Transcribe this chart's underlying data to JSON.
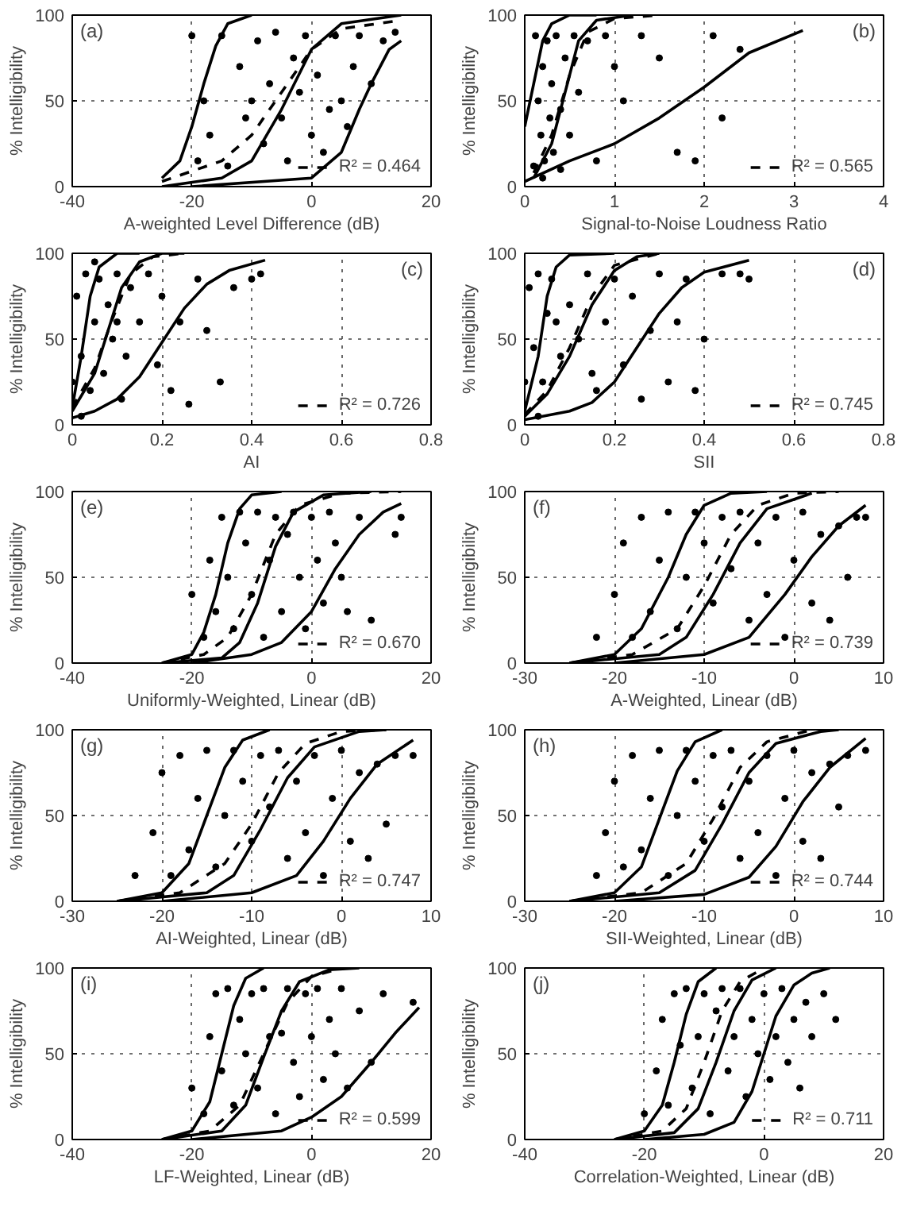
{
  "chart_data": [
    {
      "type": "scatter",
      "xlabel": "A-weighted Level Difference (dB)",
      "ylabel": "% Intelligibility",
      "xlim": [
        -40,
        20
      ],
      "xticks": [
        -40,
        -20,
        0,
        20
      ],
      "ylim": [
        0,
        100
      ],
      "yticks": [
        0,
        50,
        100
      ],
      "grid": true,
      "legend": "bottom right",
      "annotations": [
        "(a)"
      ],
      "series": [
        {
          "type": "scatter",
          "marker": "circle",
          "color": "#000000",
          "x": [
            -20,
            -19,
            -17,
            -15,
            -14,
            -12,
            -10,
            -9,
            -8,
            -7,
            -6,
            -5,
            -4,
            -3,
            -2,
            -1,
            0,
            1,
            2,
            3,
            4,
            5,
            6,
            7,
            8,
            10,
            12,
            14,
            -18,
            -11
          ],
          "values": [
            88,
            15,
            30,
            88,
            12,
            70,
            50,
            85,
            25,
            60,
            90,
            40,
            15,
            75,
            55,
            88,
            30,
            65,
            20,
            45,
            88,
            50,
            35,
            70,
            88,
            60,
            85,
            90,
            50,
            40
          ]
        },
        {
          "type": "line",
          "line_style": "solid",
          "color": "#000000",
          "x": [
            -25,
            -22,
            -20,
            -18,
            -16,
            -14,
            -10
          ],
          "values": [
            5,
            15,
            35,
            60,
            82,
            95,
            100
          ]
        },
        {
          "type": "line",
          "line_style": "solid",
          "color": "#000000",
          "x": [
            -25,
            -15,
            -10,
            -5,
            0,
            5,
            15
          ],
          "values": [
            0,
            5,
            15,
            45,
            80,
            95,
            100
          ]
        },
        {
          "type": "line",
          "line_style": "solid",
          "color": "#000000",
          "x": [
            -20,
            0,
            5,
            8,
            10,
            13,
            15
          ],
          "values": [
            0,
            5,
            20,
            45,
            60,
            80,
            85
          ]
        },
        {
          "type": "line",
          "line_style": "dashed",
          "name": "R² = 0.464",
          "color": "#000000",
          "x": [
            -25,
            -15,
            -10,
            -5,
            0,
            5,
            15
          ],
          "values": [
            3,
            15,
            30,
            55,
            80,
            92,
            97
          ]
        }
      ]
    },
    {
      "type": "scatter",
      "xlabel": "Signal-to-Noise Loudness Ratio",
      "ylabel": "% Intelligibility",
      "xlim": [
        0,
        4
      ],
      "xticks": [
        0,
        1,
        2,
        3,
        4
      ],
      "ylim": [
        0,
        100
      ],
      "yticks": [
        0,
        50,
        100
      ],
      "grid": true,
      "legend": "bottom right",
      "annotations": [
        "(b)"
      ],
      "series": [
        {
          "type": "scatter",
          "marker": "circle",
          "color": "#000000",
          "x": [
            0.1,
            0.12,
            0.15,
            0.18,
            0.2,
            0.22,
            0.25,
            0.28,
            0.3,
            0.32,
            0.35,
            0.4,
            0.45,
            0.5,
            0.55,
            0.6,
            0.7,
            0.8,
            0.9,
            1.0,
            1.1,
            1.3,
            1.5,
            1.7,
            1.9,
            2.1,
            2.2,
            2.4,
            0.2,
            0.4
          ],
          "values": [
            12,
            88,
            50,
            30,
            70,
            15,
            85,
            40,
            60,
            20,
            88,
            45,
            75,
            30,
            88,
            55,
            85,
            15,
            88,
            70,
            50,
            88,
            75,
            20,
            15,
            88,
            40,
            80,
            5,
            10
          ]
        },
        {
          "type": "line",
          "line_style": "solid",
          "color": "#000000",
          "x": [
            0,
            0.1,
            0.2,
            0.3,
            0.5,
            0.8
          ],
          "values": [
            35,
            60,
            85,
            95,
            100,
            100
          ]
        },
        {
          "type": "line",
          "line_style": "solid",
          "color": "#000000",
          "x": [
            0.1,
            0.3,
            0.45,
            0.6,
            0.8,
            1.2
          ],
          "values": [
            5,
            25,
            55,
            85,
            97,
            100
          ]
        },
        {
          "type": "line",
          "line_style": "solid",
          "color": "#000000",
          "x": [
            0,
            0.5,
            1,
            1.5,
            2,
            2.5,
            3.1
          ],
          "values": [
            3,
            15,
            25,
            40,
            58,
            78,
            91
          ]
        },
        {
          "type": "line",
          "line_style": "dashed",
          "name": "R² = 0.565",
          "color": "#000000",
          "x": [
            0.1,
            0.3,
            0.5,
            0.7,
            1.0,
            1.5
          ],
          "values": [
            8,
            30,
            65,
            90,
            98,
            100
          ]
        }
      ]
    },
    {
      "type": "scatter",
      "xlabel": "AI",
      "ylabel": "% Intelligibility",
      "xlim": [
        0,
        0.8
      ],
      "xticks": [
        0,
        0.2,
        0.4,
        0.6,
        0.8
      ],
      "ylim": [
        0,
        100
      ],
      "yticks": [
        0,
        50,
        100
      ],
      "grid": true,
      "legend": "bottom right",
      "annotations": [
        "(c)"
      ],
      "series": [
        {
          "type": "scatter",
          "marker": "circle",
          "color": "#000000",
          "x": [
            0,
            0.01,
            0.02,
            0.03,
            0.04,
            0.05,
            0.06,
            0.07,
            0.08,
            0.09,
            0.1,
            0.11,
            0.12,
            0.13,
            0.15,
            0.17,
            0.19,
            0.2,
            0.22,
            0.24,
            0.26,
            0.28,
            0.3,
            0.33,
            0.36,
            0.4,
            0.42,
            0.02,
            0.05,
            0.1
          ],
          "values": [
            25,
            75,
            40,
            88,
            20,
            60,
            85,
            30,
            70,
            50,
            88,
            15,
            40,
            80,
            60,
            88,
            35,
            75,
            20,
            60,
            12,
            85,
            55,
            25,
            80,
            85,
            88,
            5,
            95,
            60
          ]
        },
        {
          "type": "line",
          "line_style": "solid",
          "color": "#000000",
          "x": [
            0,
            0.02,
            0.04,
            0.06,
            0.1,
            0.15
          ],
          "values": [
            10,
            40,
            75,
            92,
            100,
            100
          ]
        },
        {
          "type": "line",
          "line_style": "solid",
          "color": "#000000",
          "x": [
            0,
            0.05,
            0.08,
            0.11,
            0.15,
            0.2,
            0.25
          ],
          "values": [
            8,
            30,
            55,
            80,
            95,
            100,
            100
          ]
        },
        {
          "type": "line",
          "line_style": "solid",
          "color": "#000000",
          "x": [
            0,
            0.05,
            0.1,
            0.15,
            0.2,
            0.25,
            0.3,
            0.35,
            0.43
          ],
          "values": [
            4,
            8,
            15,
            28,
            48,
            68,
            82,
            90,
            96
          ]
        },
        {
          "type": "line",
          "line_style": "dashed",
          "name": "R² = 0.726",
          "color": "#000000",
          "x": [
            0,
            0.05,
            0.09,
            0.13,
            0.18,
            0.25
          ],
          "values": [
            10,
            33,
            62,
            88,
            98,
            100
          ]
        }
      ]
    },
    {
      "type": "scatter",
      "xlabel": "SII",
      "ylabel": "% Intelligibility",
      "xlim": [
        0,
        0.8
      ],
      "xticks": [
        0,
        0.2,
        0.4,
        0.6,
        0.8
      ],
      "ylim": [
        0,
        100
      ],
      "yticks": [
        0,
        50,
        100
      ],
      "grid": true,
      "legend": "bottom right",
      "annotations": [
        "(d)"
      ],
      "series": [
        {
          "type": "scatter",
          "marker": "circle",
          "color": "#000000",
          "x": [
            0,
            0.01,
            0.02,
            0.03,
            0.04,
            0.05,
            0.06,
            0.08,
            0.1,
            0.12,
            0.14,
            0.16,
            0.18,
            0.2,
            0.22,
            0.24,
            0.26,
            0.28,
            0.3,
            0.32,
            0.34,
            0.36,
            0.38,
            0.4,
            0.44,
            0.48,
            0.5,
            0.03,
            0.07,
            0.15
          ],
          "values": [
            25,
            80,
            45,
            88,
            25,
            65,
            85,
            40,
            70,
            50,
            88,
            20,
            60,
            85,
            35,
            75,
            15,
            55,
            88,
            25,
            60,
            85,
            20,
            50,
            88,
            88,
            85,
            5,
            60,
            30
          ]
        },
        {
          "type": "line",
          "line_style": "solid",
          "color": "#000000",
          "x": [
            0,
            0.03,
            0.05,
            0.07,
            0.1,
            0.2
          ],
          "values": [
            8,
            40,
            75,
            92,
            99,
            100
          ]
        },
        {
          "type": "line",
          "line_style": "solid",
          "color": "#000000",
          "x": [
            0,
            0.05,
            0.1,
            0.15,
            0.2,
            0.25,
            0.3
          ],
          "values": [
            5,
            18,
            40,
            70,
            90,
            98,
            100
          ]
        },
        {
          "type": "line",
          "line_style": "solid",
          "color": "#000000",
          "x": [
            0,
            0.1,
            0.15,
            0.2,
            0.25,
            0.3,
            0.35,
            0.4,
            0.5
          ],
          "values": [
            3,
            8,
            13,
            25,
            45,
            65,
            80,
            89,
            96
          ]
        },
        {
          "type": "line",
          "line_style": "dashed",
          "name": "R² = 0.745",
          "color": "#000000",
          "x": [
            0,
            0.05,
            0.1,
            0.15,
            0.2,
            0.3
          ],
          "values": [
            6,
            20,
            45,
            75,
            93,
            100
          ]
        }
      ]
    },
    {
      "type": "scatter",
      "xlabel": "Uniformly-Weighted, Linear (dB)",
      "ylabel": "% Intelligibility",
      "xlim": [
        -40,
        20
      ],
      "xticks": [
        -40,
        -20,
        0,
        20
      ],
      "ylim": [
        0,
        100
      ],
      "yticks": [
        0,
        50,
        100
      ],
      "grid": true,
      "legend": "bottom right",
      "annotations": [
        "(e)"
      ],
      "series": [
        {
          "type": "scatter",
          "marker": "circle",
          "color": "#000000",
          "x": [
            -20,
            -18,
            -17,
            -16,
            -15,
            -14,
            -13,
            -12,
            -11,
            -10,
            -9,
            -8,
            -7,
            -6,
            -5,
            -4,
            -3,
            -2,
            -1,
            0,
            1,
            2,
            3,
            4,
            5,
            6,
            8,
            10,
            14,
            15
          ],
          "values": [
            40,
            15,
            60,
            30,
            85,
            50,
            20,
            88,
            70,
            40,
            88,
            15,
            60,
            85,
            30,
            75,
            88,
            50,
            20,
            85,
            60,
            35,
            88,
            70,
            50,
            30,
            85,
            25,
            75,
            85
          ]
        },
        {
          "type": "line",
          "line_style": "solid",
          "color": "#000000",
          "x": [
            -25,
            -20,
            -18,
            -16,
            -14,
            -12,
            -10,
            -5
          ],
          "values": [
            0,
            5,
            18,
            40,
            70,
            90,
            98,
            100
          ]
        },
        {
          "type": "line",
          "line_style": "solid",
          "color": "#000000",
          "x": [
            -25,
            -15,
            -12,
            -9,
            -6,
            -3,
            2,
            10
          ],
          "values": [
            0,
            3,
            12,
            35,
            68,
            88,
            98,
            100
          ]
        },
        {
          "type": "line",
          "line_style": "solid",
          "color": "#000000",
          "x": [
            -20,
            -10,
            -5,
            0,
            4,
            8,
            12,
            15
          ],
          "values": [
            0,
            5,
            12,
            30,
            55,
            75,
            88,
            93
          ]
        },
        {
          "type": "line",
          "line_style": "dashed",
          "name": "R² = 0.670",
          "color": "#000000",
          "x": [
            -25,
            -18,
            -14,
            -10,
            -6,
            -2,
            5,
            15
          ],
          "values": [
            0,
            5,
            15,
            40,
            75,
            92,
            99,
            100
          ]
        }
      ]
    },
    {
      "type": "scatter",
      "xlabel": "A-Weighted, Linear (dB)",
      "ylabel": "% Intelligibility",
      "xlim": [
        -30,
        10
      ],
      "xticks": [
        -30,
        -20,
        -10,
        0,
        10
      ],
      "ylim": [
        0,
        100
      ],
      "yticks": [
        0,
        50,
        100
      ],
      "grid": true,
      "legend": "bottom right",
      "annotations": [
        "(f)"
      ],
      "series": [
        {
          "type": "scatter",
          "marker": "circle",
          "color": "#000000",
          "x": [
            -22,
            -20,
            -19,
            -18,
            -17,
            -16,
            -15,
            -14,
            -13,
            -12,
            -11,
            -10,
            -9,
            -8,
            -7,
            -6,
            -5,
            -4,
            -3,
            -2,
            -1,
            0,
            1,
            2,
            3,
            4,
            5,
            6,
            7,
            8
          ],
          "values": [
            15,
            40,
            70,
            15,
            85,
            30,
            60,
            88,
            20,
            50,
            88,
            70,
            35,
            85,
            55,
            88,
            25,
            70,
            40,
            85,
            15,
            60,
            88,
            35,
            75,
            25,
            80,
            50,
            85,
            85
          ]
        },
        {
          "type": "line",
          "line_style": "solid",
          "color": "#000000",
          "x": [
            -25,
            -20,
            -17,
            -14,
            -12,
            -10,
            -7,
            -3
          ],
          "values": [
            0,
            5,
            20,
            50,
            75,
            92,
            99,
            100
          ]
        },
        {
          "type": "line",
          "line_style": "solid",
          "color": "#000000",
          "x": [
            -25,
            -15,
            -12,
            -9,
            -6,
            -3,
            2
          ],
          "values": [
            0,
            5,
            15,
            40,
            70,
            90,
            99
          ]
        },
        {
          "type": "line",
          "line_style": "solid",
          "color": "#000000",
          "x": [
            -20,
            -10,
            -5,
            -1,
            2,
            5,
            8
          ],
          "values": [
            0,
            5,
            15,
            40,
            62,
            80,
            92
          ]
        },
        {
          "type": "line",
          "line_style": "dashed",
          "name": "R² = 0.739",
          "color": "#000000",
          "x": [
            -25,
            -18,
            -13,
            -10,
            -7,
            -4,
            0,
            5
          ],
          "values": [
            0,
            5,
            20,
            45,
            75,
            92,
            99,
            100
          ]
        }
      ]
    },
    {
      "type": "scatter",
      "xlabel": "AI-Weighted, Linear (dB)",
      "ylabel": "% Intelligibility",
      "xlim": [
        -30,
        10
      ],
      "xticks": [
        -30,
        -20,
        -10,
        0,
        10
      ],
      "ylim": [
        0,
        100
      ],
      "yticks": [
        0,
        50,
        100
      ],
      "grid": true,
      "legend": "bottom right",
      "annotations": [
        "(g)"
      ],
      "series": [
        {
          "type": "scatter",
          "marker": "circle",
          "color": "#000000",
          "x": [
            -23,
            -21,
            -20,
            -19,
            -18,
            -17,
            -16,
            -15,
            -14,
            -13,
            -12,
            -11,
            -10,
            -9,
            -8,
            -7,
            -6,
            -5,
            -4,
            -3,
            -2,
            -1,
            0,
            1,
            2,
            3,
            4,
            5,
            6,
            8
          ],
          "values": [
            15,
            40,
            75,
            15,
            85,
            30,
            60,
            88,
            20,
            50,
            88,
            70,
            35,
            85,
            55,
            88,
            25,
            70,
            40,
            85,
            15,
            60,
            88,
            35,
            75,
            25,
            80,
            45,
            85,
            85
          ]
        },
        {
          "type": "line",
          "line_style": "solid",
          "color": "#000000",
          "x": [
            -25,
            -20,
            -17,
            -15,
            -13,
            -11,
            -8
          ],
          "values": [
            0,
            5,
            22,
            50,
            78,
            94,
            100
          ]
        },
        {
          "type": "line",
          "line_style": "solid",
          "color": "#000000",
          "x": [
            -25,
            -15,
            -12,
            -9,
            -6,
            -3,
            2,
            5
          ],
          "values": [
            0,
            5,
            15,
            42,
            72,
            90,
            99,
            100
          ]
        },
        {
          "type": "line",
          "line_style": "solid",
          "color": "#000000",
          "x": [
            -20,
            -10,
            -5,
            -2,
            1,
            4,
            8
          ],
          "values": [
            0,
            5,
            15,
            35,
            60,
            80,
            94
          ]
        },
        {
          "type": "line",
          "line_style": "dashed",
          "name": "R² = 0.747",
          "color": "#000000",
          "x": [
            -25,
            -18,
            -13,
            -10,
            -7,
            -4,
            0,
            5
          ],
          "values": [
            0,
            5,
            22,
            45,
            75,
            92,
            99,
            100
          ]
        }
      ]
    },
    {
      "type": "scatter",
      "xlabel": "SII-Weighted, Linear (dB)",
      "ylabel": "% Intelligibility",
      "xlim": [
        -30,
        10
      ],
      "xticks": [
        -30,
        -20,
        -10,
        0,
        10
      ],
      "ylim": [
        0,
        100
      ],
      "yticks": [
        0,
        50,
        100
      ],
      "grid": true,
      "legend": "bottom right",
      "annotations": [
        "(h)"
      ],
      "series": [
        {
          "type": "scatter",
          "marker": "circle",
          "color": "#000000",
          "x": [
            -22,
            -21,
            -20,
            -19,
            -18,
            -17,
            -16,
            -15,
            -14,
            -13,
            -12,
            -11,
            -10,
            -9,
            -8,
            -7,
            -6,
            -5,
            -4,
            -3,
            -2,
            -1,
            0,
            1,
            2,
            3,
            4,
            5,
            6,
            8
          ],
          "values": [
            15,
            40,
            70,
            20,
            85,
            30,
            60,
            88,
            15,
            50,
            88,
            70,
            35,
            85,
            55,
            88,
            25,
            70,
            40,
            85,
            15,
            60,
            88,
            35,
            75,
            25,
            80,
            55,
            85,
            88
          ]
        },
        {
          "type": "line",
          "line_style": "solid",
          "color": "#000000",
          "x": [
            -25,
            -20,
            -17,
            -15,
            -13,
            -11,
            -8
          ],
          "values": [
            0,
            5,
            20,
            48,
            76,
            93,
            100
          ]
        },
        {
          "type": "line",
          "line_style": "solid",
          "color": "#000000",
          "x": [
            -25,
            -15,
            -11,
            -8,
            -5,
            -2,
            3,
            5
          ],
          "values": [
            0,
            5,
            18,
            45,
            75,
            92,
            99,
            100
          ]
        },
        {
          "type": "line",
          "line_style": "solid",
          "color": "#000000",
          "x": [
            -20,
            -10,
            -5,
            -2,
            1,
            4,
            8
          ],
          "values": [
            0,
            4,
            14,
            32,
            58,
            78,
            95
          ]
        },
        {
          "type": "line",
          "line_style": "dashed",
          "name": "R² = 0.744",
          "color": "#000000",
          "x": [
            -25,
            -17,
            -12,
            -9,
            -6,
            -3,
            2
          ],
          "values": [
            0,
            5,
            22,
            48,
            78,
            93,
            100
          ]
        }
      ]
    },
    {
      "type": "scatter",
      "xlabel": "LF-Weighted, Linear (dB)",
      "ylabel": "% Intelligibility",
      "xlim": [
        -40,
        20
      ],
      "xticks": [
        -40,
        -20,
        0,
        20
      ],
      "ylim": [
        0,
        100
      ],
      "yticks": [
        0,
        50,
        100
      ],
      "grid": true,
      "legend": "bottom right",
      "annotations": [
        "(i)"
      ],
      "series": [
        {
          "type": "scatter",
          "marker": "circle",
          "color": "#000000",
          "x": [
            -20,
            -18,
            -17,
            -16,
            -15,
            -14,
            -13,
            -12,
            -11,
            -10,
            -9,
            -8,
            -7,
            -6,
            -5,
            -4,
            -3,
            -2,
            -1,
            0,
            1,
            2,
            3,
            4,
            5,
            6,
            8,
            10,
            12,
            17
          ],
          "values": [
            30,
            15,
            60,
            85,
            40,
            88,
            20,
            70,
            50,
            85,
            30,
            88,
            60,
            15,
            62,
            88,
            45,
            25,
            85,
            60,
            88,
            35,
            70,
            50,
            88,
            30,
            75,
            45,
            85,
            80
          ]
        },
        {
          "type": "line",
          "line_style": "solid",
          "color": "#000000",
          "x": [
            -25,
            -20,
            -17,
            -15,
            -13,
            -11,
            -8
          ],
          "values": [
            0,
            5,
            22,
            50,
            78,
            94,
            100
          ]
        },
        {
          "type": "line",
          "line_style": "solid",
          "color": "#000000",
          "x": [
            -25,
            -15,
            -11,
            -8,
            -5,
            -2,
            3,
            8
          ],
          "values": [
            0,
            5,
            20,
            48,
            75,
            92,
            99,
            100
          ]
        },
        {
          "type": "line",
          "line_style": "solid",
          "color": "#000000",
          "x": [
            -20,
            -5,
            0,
            5,
            10,
            14,
            18
          ],
          "values": [
            0,
            5,
            13,
            25,
            45,
            62,
            77
          ]
        },
        {
          "type": "line",
          "line_style": "dashed",
          "name": "R² = 0.599",
          "color": "#000000",
          "x": [
            -25,
            -17,
            -12,
            -8,
            -4,
            0,
            5
          ],
          "values": [
            0,
            5,
            20,
            50,
            80,
            95,
            100
          ]
        }
      ]
    },
    {
      "type": "scatter",
      "xlabel": "Correlation-Weighted, Linear (dB)",
      "ylabel": "% Intelligibility",
      "xlim": [
        -40,
        20
      ],
      "xticks": [
        -40,
        -20,
        0,
        20
      ],
      "ylim": [
        0,
        100
      ],
      "yticks": [
        0,
        50,
        100
      ],
      "grid": true,
      "legend": "bottom right",
      "annotations": [
        "(j)"
      ],
      "series": [
        {
          "type": "scatter",
          "marker": "circle",
          "color": "#000000",
          "x": [
            -20,
            -18,
            -17,
            -16,
            -15,
            -14,
            -13,
            -12,
            -11,
            -10,
            -9,
            -8,
            -7,
            -6,
            -5,
            -4,
            -3,
            -2,
            -1,
            0,
            1,
            2,
            3,
            4,
            5,
            6,
            7,
            8,
            10,
            12
          ],
          "values": [
            15,
            40,
            70,
            20,
            85,
            55,
            88,
            30,
            60,
            85,
            15,
            75,
            88,
            40,
            60,
            88,
            25,
            70,
            50,
            85,
            35,
            60,
            88,
            45,
            70,
            30,
            80,
            60,
            85,
            70
          ]
        },
        {
          "type": "line",
          "line_style": "solid",
          "color": "#000000",
          "x": [
            -25,
            -20,
            -17,
            -15,
            -13,
            -11,
            -8
          ],
          "values": [
            0,
            5,
            20,
            45,
            73,
            92,
            100
          ]
        },
        {
          "type": "line",
          "line_style": "solid",
          "color": "#000000",
          "x": [
            -25,
            -15,
            -11,
            -8,
            -5,
            -2,
            2
          ],
          "values": [
            0,
            4,
            18,
            45,
            75,
            93,
            100
          ]
        },
        {
          "type": "line",
          "line_style": "solid",
          "color": "#000000",
          "x": [
            -20,
            -10,
            -5,
            -2,
            0,
            2,
            5,
            8,
            11
          ],
          "values": [
            0,
            3,
            10,
            28,
            50,
            72,
            90,
            97,
            100
          ]
        },
        {
          "type": "line",
          "line_style": "dashed",
          "name": "R² = 0.711",
          "color": "#000000",
          "x": [
            -25,
            -17,
            -13,
            -10,
            -7,
            -4,
            0
          ],
          "values": [
            0,
            5,
            18,
            45,
            75,
            92,
            100
          ]
        }
      ]
    }
  ]
}
